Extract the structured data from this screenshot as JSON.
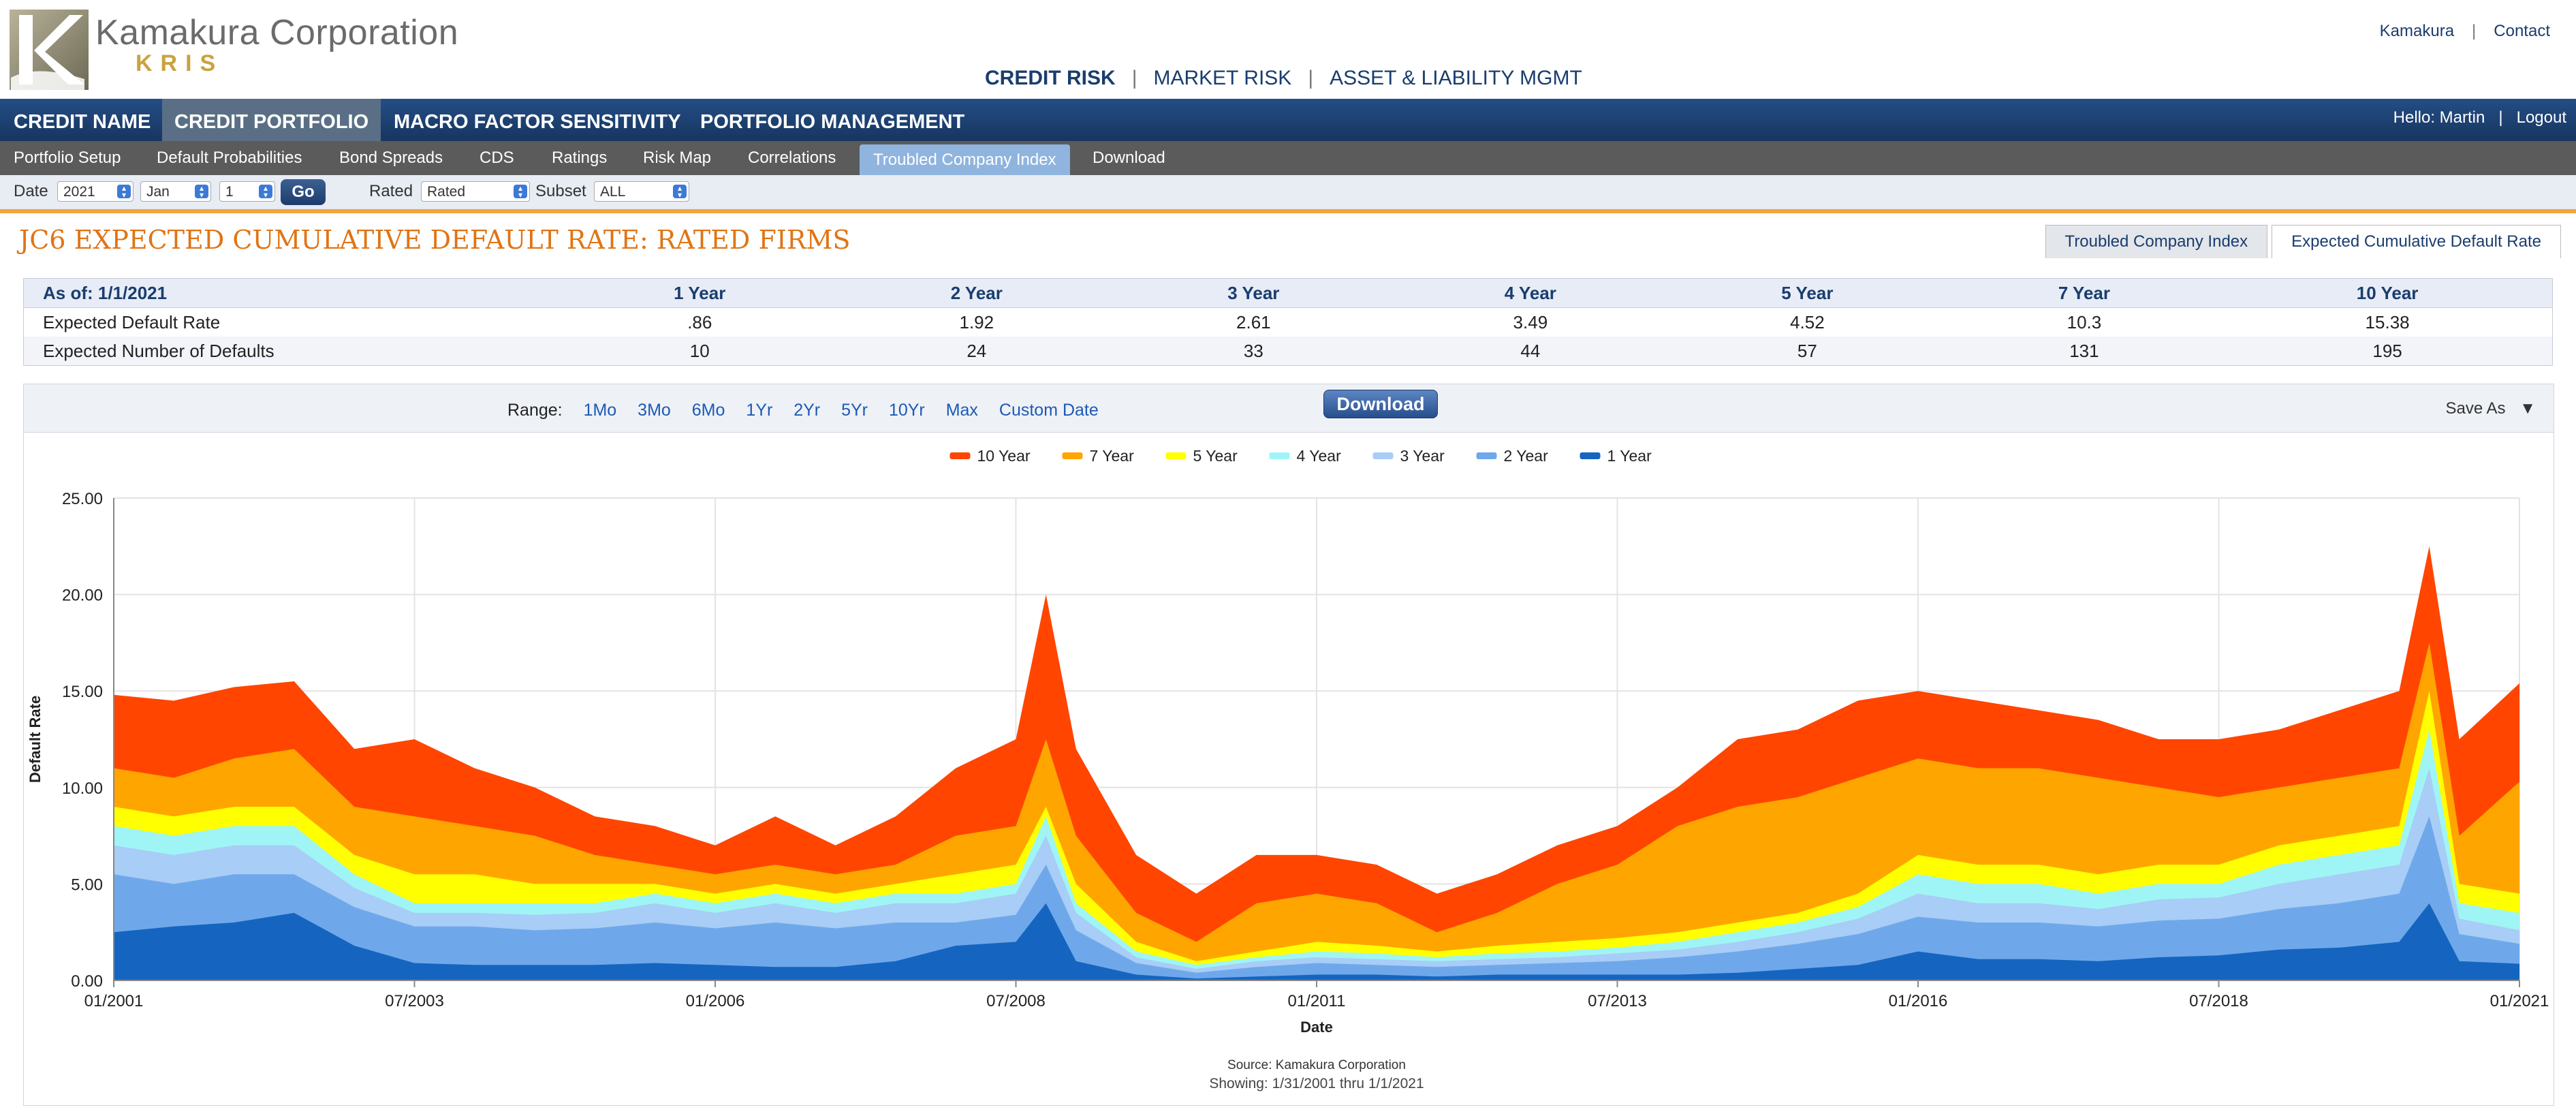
{
  "header": {
    "brand": "Kamakura Corporation",
    "product": "KRIS",
    "top_links": [
      "Kamakura",
      "Contact"
    ],
    "main_nav": [
      "CREDIT RISK",
      "MARKET RISK",
      "ASSET & LIABILITY MGMT"
    ],
    "main_nav_active": "CREDIT RISK"
  },
  "nav": {
    "tabs": [
      "CREDIT NAME",
      "CREDIT PORTFOLIO",
      "MACRO FACTOR SENSITIVITY",
      "PORTFOLIO MANAGEMENT"
    ],
    "active_tab": "CREDIT PORTFOLIO",
    "hello": "Hello: Martin",
    "logout": "Logout"
  },
  "subnav": {
    "items": [
      "Portfolio Setup",
      "Default Probabilities",
      "Bond Spreads",
      "CDS",
      "Ratings",
      "Risk Map",
      "Correlations",
      "Troubled Company Index",
      "Download"
    ],
    "active": "Troubled Company Index"
  },
  "filters": {
    "date_label": "Date",
    "year": "2021",
    "month": "Jan",
    "day": "1",
    "go": "Go",
    "rated_label": "Rated",
    "rated": "Rated",
    "subset_label": "Subset",
    "subset": "ALL"
  },
  "page": {
    "title": "JC6 EXPECTED CUMULATIVE DEFAULT RATE: RATED FIRMS",
    "right_tabs": [
      "Troubled Company Index",
      "Expected Cumulative Default Rate"
    ],
    "active_right_tab": "Expected Cumulative Default Rate"
  },
  "table": {
    "headers": [
      "As of: 1/1/2021",
      "1 Year",
      "2 Year",
      "3 Year",
      "4 Year",
      "5 Year",
      "7 Year",
      "10 Year"
    ],
    "rows": [
      [
        "Expected Default Rate",
        ".86",
        "1.92",
        "2.61",
        "3.49",
        "4.52",
        "10.3",
        "15.38"
      ],
      [
        "Expected Number of Defaults",
        "10",
        "24",
        "33",
        "44",
        "57",
        "131",
        "195"
      ]
    ]
  },
  "chart_panel": {
    "range_label": "Range:",
    "ranges": [
      "1Mo",
      "3Mo",
      "6Mo",
      "1Yr",
      "2Yr",
      "5Yr",
      "10Yr",
      "Max",
      "Custom Date"
    ],
    "download": "Download",
    "save_as": "Save As",
    "source": "Source: Kamakura Corporation",
    "showing": "Showing: 1/31/2001 thru 1/1/2021"
  },
  "chart_data": {
    "type": "area",
    "title": "",
    "xlabel": "Date",
    "ylabel": "Default Rate",
    "ylim": [
      0,
      25
    ],
    "x_range": [
      "01/2001",
      "01/2021"
    ],
    "y_ticks": [
      "0.00",
      "5.00",
      "10.00",
      "15.00",
      "20.00",
      "25.00"
    ],
    "x_ticks": [
      "01/2001",
      "07/2003",
      "01/2006",
      "07/2008",
      "01/2011",
      "07/2013",
      "01/2016",
      "07/2018",
      "01/2021"
    ],
    "legend_position": "top-center",
    "grid": true,
    "x": [
      "2001-01",
      "2001-07",
      "2002-01",
      "2002-07",
      "2003-01",
      "2003-07",
      "2004-01",
      "2004-07",
      "2005-01",
      "2005-07",
      "2006-01",
      "2006-07",
      "2007-01",
      "2007-07",
      "2008-01",
      "2008-07",
      "2008-10",
      "2009-01",
      "2009-07",
      "2010-01",
      "2010-07",
      "2011-01",
      "2011-07",
      "2012-01",
      "2012-07",
      "2013-01",
      "2013-07",
      "2014-01",
      "2014-07",
      "2015-01",
      "2015-07",
      "2016-01",
      "2016-07",
      "2017-01",
      "2017-07",
      "2018-01",
      "2018-07",
      "2019-01",
      "2019-07",
      "2020-01",
      "2020-04",
      "2020-07",
      "2021-01"
    ],
    "series": [
      {
        "name": "10 Year",
        "color": "#ff4500",
        "values": [
          14.8,
          14.5,
          15.2,
          15.5,
          12.0,
          12.5,
          11.0,
          10.0,
          8.5,
          8.0,
          7.0,
          8.5,
          7.0,
          8.5,
          11.0,
          12.5,
          20.0,
          12.0,
          6.5,
          4.5,
          6.5,
          6.5,
          6.0,
          4.5,
          5.5,
          7.0,
          8.0,
          10.0,
          12.5,
          13.0,
          14.5,
          15.0,
          14.5,
          14.0,
          13.5,
          12.5,
          12.5,
          13.0,
          14.0,
          15.0,
          22.5,
          12.5,
          15.4
        ]
      },
      {
        "name": "7 Year",
        "color": "#ffa500",
        "values": [
          11.0,
          10.5,
          11.5,
          12.0,
          9.0,
          8.5,
          8.0,
          7.5,
          6.5,
          6.0,
          5.5,
          6.0,
          5.5,
          6.0,
          7.5,
          8.0,
          12.5,
          7.5,
          3.5,
          2.0,
          4.0,
          4.5,
          4.0,
          2.5,
          3.5,
          5.0,
          6.0,
          8.0,
          9.0,
          9.5,
          10.5,
          11.5,
          11.0,
          11.0,
          10.5,
          10.0,
          9.5,
          10.0,
          10.5,
          11.0,
          17.5,
          7.5,
          10.3
        ]
      },
      {
        "name": "5 Year",
        "color": "#ffff00",
        "values": [
          9.0,
          8.5,
          9.0,
          9.0,
          6.5,
          5.5,
          5.5,
          5.0,
          5.0,
          5.0,
          4.5,
          5.0,
          4.5,
          5.0,
          5.5,
          6.0,
          9.0,
          5.0,
          2.0,
          1.0,
          1.5,
          2.0,
          1.8,
          1.5,
          1.8,
          2.0,
          2.2,
          2.5,
          3.0,
          3.5,
          4.5,
          6.5,
          6.0,
          6.0,
          5.5,
          6.0,
          6.0,
          7.0,
          7.5,
          8.0,
          15.0,
          5.0,
          4.5
        ]
      },
      {
        "name": "4 Year",
        "color": "#9ff5f5",
        "values": [
          8.0,
          7.5,
          8.0,
          8.0,
          5.5,
          4.0,
          4.0,
          4.0,
          4.0,
          4.5,
          4.0,
          4.5,
          4.0,
          4.5,
          4.5,
          5.0,
          8.5,
          4.0,
          1.5,
          0.8,
          1.2,
          1.5,
          1.4,
          1.2,
          1.4,
          1.5,
          1.7,
          2.0,
          2.5,
          3.0,
          3.8,
          5.5,
          5.0,
          5.0,
          4.5,
          5.0,
          5.0,
          6.0,
          6.5,
          7.0,
          13.0,
          4.0,
          3.5
        ]
      },
      {
        "name": "3 Year",
        "color": "#a8cdf6",
        "values": [
          7.0,
          6.5,
          7.0,
          7.0,
          4.8,
          3.5,
          3.5,
          3.4,
          3.5,
          4.0,
          3.5,
          4.0,
          3.5,
          4.0,
          4.0,
          4.5,
          7.5,
          3.5,
          1.2,
          0.6,
          1.0,
          1.2,
          1.1,
          1.0,
          1.1,
          1.2,
          1.4,
          1.6,
          2.0,
          2.5,
          3.2,
          4.5,
          4.0,
          4.0,
          3.7,
          4.2,
          4.3,
          5.0,
          5.5,
          6.0,
          11.0,
          3.2,
          2.6
        ]
      },
      {
        "name": "2 Year",
        "color": "#6fa8ea",
        "values": [
          5.5,
          5.0,
          5.5,
          5.5,
          3.8,
          2.8,
          2.8,
          2.6,
          2.7,
          3.0,
          2.7,
          3.0,
          2.7,
          3.0,
          3.0,
          3.4,
          6.0,
          2.6,
          0.9,
          0.4,
          0.7,
          0.9,
          0.8,
          0.7,
          0.8,
          0.9,
          1.0,
          1.2,
          1.5,
          1.9,
          2.4,
          3.3,
          3.0,
          3.0,
          2.8,
          3.1,
          3.2,
          3.7,
          4.0,
          4.5,
          8.5,
          2.4,
          1.9
        ]
      },
      {
        "name": "1 Year",
        "color": "#1565c0",
        "values": [
          2.5,
          2.8,
          3.0,
          3.5,
          1.8,
          0.9,
          0.8,
          0.8,
          0.8,
          0.9,
          0.8,
          0.7,
          0.7,
          1.0,
          1.8,
          2.0,
          4.0,
          1.0,
          0.3,
          0.1,
          0.2,
          0.3,
          0.3,
          0.2,
          0.3,
          0.3,
          0.3,
          0.3,
          0.4,
          0.6,
          0.8,
          1.5,
          1.1,
          1.1,
          1.0,
          1.2,
          1.3,
          1.6,
          1.7,
          2.0,
          4.0,
          1.0,
          0.86
        ]
      }
    ]
  }
}
